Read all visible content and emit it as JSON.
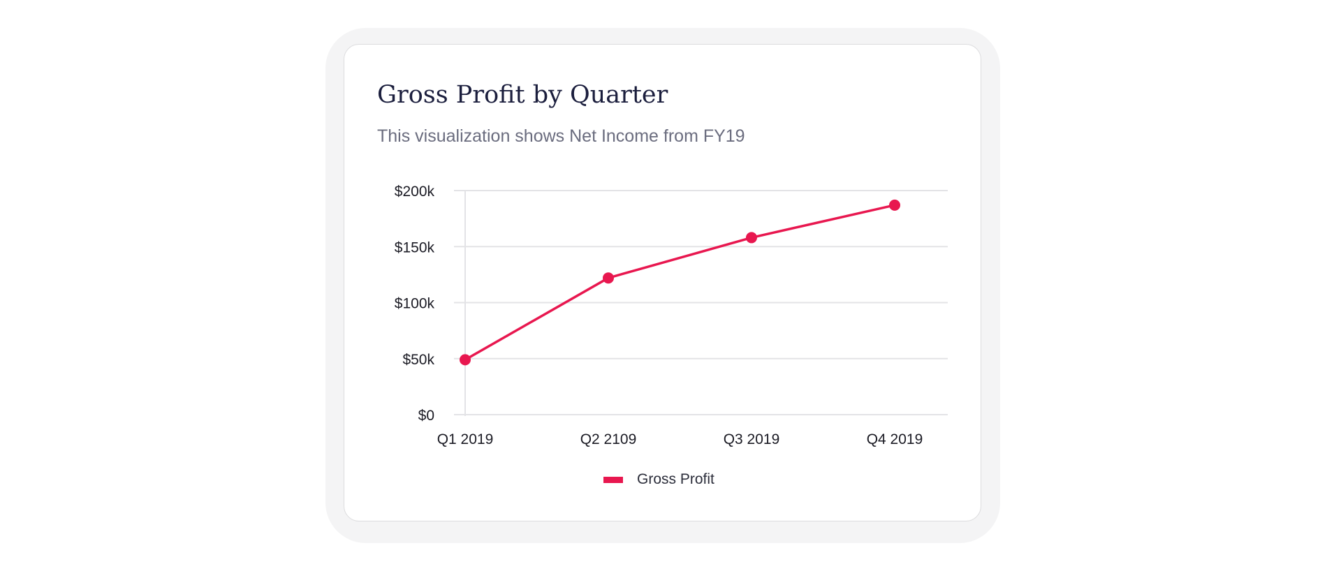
{
  "colors": {
    "series": "#e8174f",
    "grid": "#e3e3e6",
    "title": "#1b1e3d",
    "subtitle": "#6a6c7e"
  },
  "card": {
    "title": "Gross Profit by Quarter",
    "subtitle": "This visualization shows Net Income from FY19"
  },
  "chart_data": {
    "type": "line",
    "title": "Gross Profit by Quarter",
    "subtitle": "This visualization shows Net Income from FY19",
    "categories": [
      "Q1 2019",
      "Q2 2109",
      "Q3 2019",
      "Q4 2019"
    ],
    "y_ticks": [
      {
        "value": 0,
        "label": "$0"
      },
      {
        "value": 50000,
        "label": "$50k"
      },
      {
        "value": 100000,
        "label": "$100k"
      },
      {
        "value": 150000,
        "label": "$150k"
      },
      {
        "value": 200000,
        "label": "$200k"
      }
    ],
    "ylim": [
      0,
      200000
    ],
    "grid": true,
    "series": [
      {
        "name": "Gross Profit",
        "values": [
          49000,
          122000,
          158000,
          187000
        ]
      }
    ],
    "legend": {
      "position": "bottom-center",
      "entries": [
        "Gross Profit"
      ]
    },
    "xlabel": "",
    "ylabel": ""
  }
}
